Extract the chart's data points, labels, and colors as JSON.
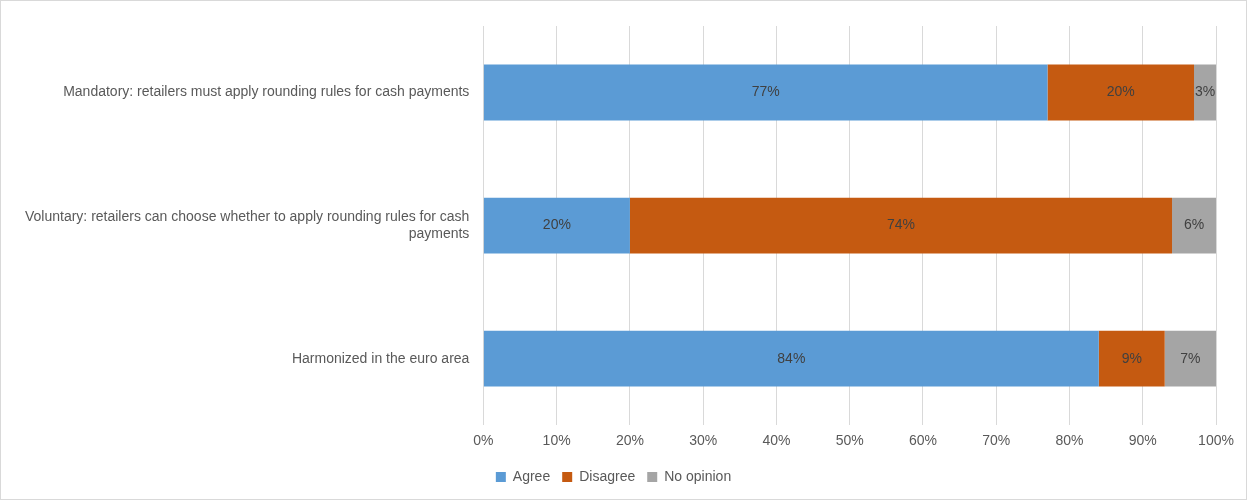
{
  "chart_data": {
    "type": "bar",
    "orientation": "horizontal",
    "stacked": true,
    "categories": [
      "Mandatory: retailers must apply rounding rules for cash payments",
      "Voluntary: retailers can choose whether to apply rounding rules for cash payments",
      "Harmonized in the euro area"
    ],
    "series": [
      {
        "name": "Agree",
        "color": "#5b9bd5",
        "values": [
          77,
          20,
          84
        ],
        "value_labels": [
          "77%",
          "20%",
          "84%"
        ]
      },
      {
        "name": "Disagree",
        "color": "#c55a11",
        "values": [
          20,
          74,
          9
        ],
        "value_labels": [
          "20%",
          "74%",
          "9%"
        ]
      },
      {
        "name": "No opinion",
        "color": "#a5a5a5",
        "values": [
          3,
          6,
          7
        ],
        "value_labels": [
          "3%",
          "6%",
          "7%"
        ]
      }
    ],
    "xlim": [
      0,
      100
    ],
    "xticks": [
      {
        "value": 0,
        "label": "0%"
      },
      {
        "value": 10,
        "label": "10%"
      },
      {
        "value": 20,
        "label": "20%"
      },
      {
        "value": 30,
        "label": "30%"
      },
      {
        "value": 40,
        "label": "40%"
      },
      {
        "value": 50,
        "label": "50%"
      },
      {
        "value": 60,
        "label": "60%"
      },
      {
        "value": 70,
        "label": "70%"
      },
      {
        "value": 80,
        "label": "80%"
      },
      {
        "value": 90,
        "label": "90%"
      },
      {
        "value": 100,
        "label": "100%"
      }
    ],
    "grid": "x",
    "legend": "bottom"
  }
}
